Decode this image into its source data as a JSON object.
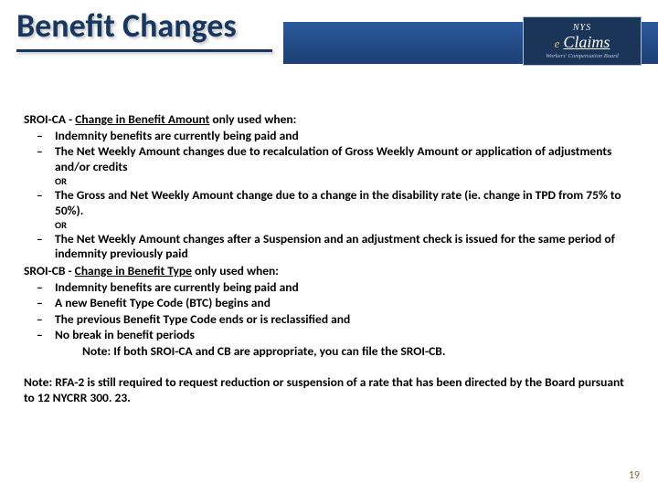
{
  "header": {
    "title": "Benefit Changes",
    "logo": {
      "top": "NYS",
      "e": "e",
      "claims": "Claims",
      "sub": "Workers' Compensation Board"
    }
  },
  "sectionA": {
    "prefix": "SROI-CA - ",
    "underline": "Change in Benefit Amount",
    "suffix": " only used when:",
    "bullets": [
      "Indemnity benefits are currently being paid and",
      "The Net Weekly Amount changes due to recalculation of Gross Weekly Amount or application of adjustments and/or credits",
      "The Gross and Net Weekly Amount change due to a change in the disability rate (ie. change in TPD from 75% to 50%).",
      "The Net Weekly Amount changes after a Suspension and an adjustment check is issued for the same period of indemnity previously paid"
    ],
    "or": "OR"
  },
  "sectionB": {
    "prefix": "SROI-CB - ",
    "underline": "Change in Benefit Type",
    "suffix": " only used when:",
    "bullets": [
      "Indemnity benefits are currently being paid and",
      "A new Benefit Type Code (BTC) begins and",
      "The previous Benefit Type Code ends or is reclassified and",
      "No break in benefit periods"
    ],
    "note": "Note: If both SROI-CA and CB are appropriate, you can file the SROI-CB."
  },
  "footnote": "Note: RFA-2 is still required to request reduction or suspension of a rate that has been directed by the Board pursuant to 12 NYCRR 300. 23.",
  "page": "19",
  "colors": {
    "title": "#17375e",
    "band": "#1d3f73",
    "pagenum": "#8a6b3e"
  }
}
